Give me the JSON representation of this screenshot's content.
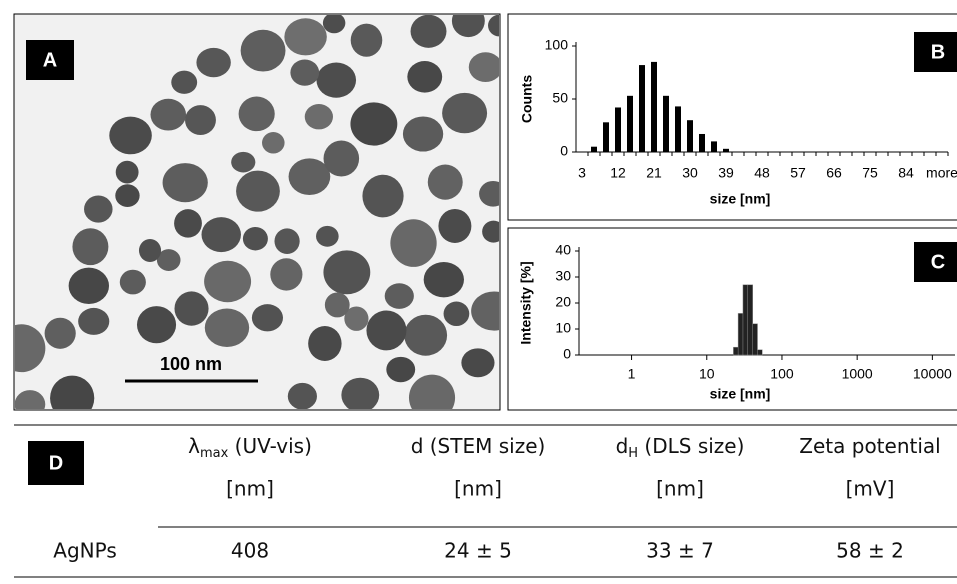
{
  "panels": {
    "a": {
      "label": "A",
      "scale_bar": "100 nm"
    },
    "d": {
      "label": "D"
    }
  },
  "chart_data": [
    {
      "type": "bar",
      "label": "B",
      "ylabel": "Counts",
      "xlabel": "size [nm]",
      "categories": [
        "3",
        null,
        null,
        "12",
        null,
        null,
        "21",
        null,
        null,
        "30",
        null,
        null,
        "39",
        null,
        null,
        "48",
        null,
        null,
        "57",
        null,
        null,
        "66",
        null,
        null,
        "75",
        null,
        null,
        "84",
        null,
        null,
        "more"
      ],
      "values": [
        0,
        5,
        28,
        42,
        53,
        82,
        85,
        53,
        43,
        30,
        17,
        10,
        3,
        0,
        0,
        0,
        0,
        0,
        0,
        0,
        0,
        0,
        0,
        0,
        0,
        0,
        0,
        0,
        0,
        0,
        0
      ],
      "ylim": [
        0,
        100
      ],
      "yticks": [
        0,
        50,
        100
      ],
      "color": "#000000"
    },
    {
      "type": "logbar",
      "label": "C",
      "ylabel": "Intensity [%]",
      "xlabel": "size [nm]",
      "x": [
        24.4,
        28.2,
        32.7,
        37.8,
        43.8,
        50.7
      ],
      "values": [
        3,
        16,
        27,
        27,
        12,
        2
      ],
      "xscale": "log",
      "xlim": [
        0.2,
        20000
      ],
      "xticks": [
        1,
        10,
        100,
        1000,
        10000
      ],
      "ylim": [
        0,
        40
      ],
      "yticks": [
        0,
        10,
        20,
        30,
        40
      ],
      "color": "#222222"
    }
  ],
  "table": {
    "header": [
      {
        "symbol": "λ",
        "sub": "max",
        "rest": " (UV-vis)",
        "unit": "[nm]"
      },
      {
        "symbol": "d",
        "sub": "",
        "rest": " (STEM size)",
        "unit": "[nm]"
      },
      {
        "symbol": "d",
        "sub": "H",
        "rest": " (DLS size)",
        "unit": "[nm]"
      },
      {
        "symbol": "Zeta potential",
        "sub": "",
        "rest": "",
        "unit": "[mV]"
      }
    ],
    "rows": [
      [
        "AgNPs",
        "408",
        "24 ± 5",
        "33 ± 7",
        "58 ± 2"
      ]
    ]
  }
}
